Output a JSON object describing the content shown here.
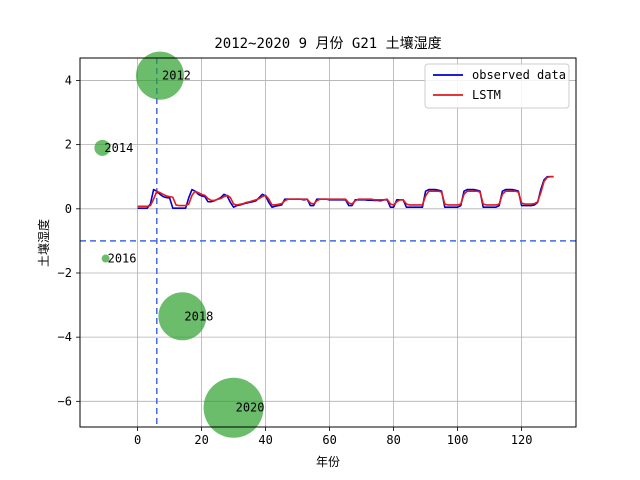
{
  "chart_data": {
    "type": "line",
    "title": "2012~2020 9 月份 G21 土壤湿度",
    "xlabel": "年份",
    "ylabel": "土壤湿度",
    "xlim": [
      -18,
      137
    ],
    "ylim": [
      -6.8,
      4.7
    ],
    "xticks": [
      0,
      20,
      40,
      60,
      80,
      100,
      120
    ],
    "yticks": [
      -6,
      -4,
      -2,
      0,
      2,
      4
    ],
    "grid": true,
    "legend_position": "top-right",
    "reference_lines": [
      {
        "orientation": "vertical",
        "value": 6,
        "color": "#4169e1",
        "style": "dashed"
      },
      {
        "orientation": "horizontal",
        "value": -1,
        "color": "#4169e1",
        "style": "dashed"
      }
    ],
    "bubbles": [
      {
        "label": "2012",
        "x": 7,
        "y": 4.15,
        "size": 24,
        "color": "#2ca02c"
      },
      {
        "label": "2014",
        "x": -11,
        "y": 1.9,
        "size": 8,
        "color": "#2ca02c"
      },
      {
        "label": "2016",
        "x": -10,
        "y": -1.55,
        "size": 4,
        "color": "#2ca02c"
      },
      {
        "label": "2018",
        "x": 14,
        "y": -3.35,
        "size": 24,
        "color": "#2ca02c"
      },
      {
        "label": "2020",
        "x": 30,
        "y": -6.2,
        "size": 30,
        "color": "#2ca02c"
      }
    ],
    "series": [
      {
        "name": "observed data",
        "color": "#0000cd",
        "x": [
          0,
          1,
          2,
          3,
          4,
          5,
          6,
          7,
          8,
          9,
          10,
          11,
          12,
          13,
          14,
          15,
          16,
          17,
          18,
          19,
          20,
          21,
          22,
          23,
          24,
          25,
          26,
          27,
          28,
          29,
          30,
          31,
          32,
          33,
          34,
          35,
          36,
          37,
          38,
          39,
          40,
          41,
          42,
          43,
          44,
          45,
          46,
          47,
          48,
          49,
          50,
          51,
          52,
          53,
          54,
          55,
          56,
          57,
          58,
          59,
          60,
          61,
          62,
          63,
          64,
          65,
          66,
          67,
          68,
          69,
          70,
          71,
          72,
          73,
          74,
          75,
          76,
          77,
          78,
          79,
          80,
          81,
          82,
          83,
          84,
          85,
          86,
          87,
          88,
          89,
          90,
          91,
          92,
          93,
          94,
          95,
          96,
          97,
          98,
          99,
          100,
          101,
          102,
          103,
          104,
          105,
          106,
          107,
          108,
          109,
          110,
          111,
          112,
          113,
          114,
          115,
          116,
          117,
          118,
          119,
          120,
          121,
          122,
          123,
          124,
          125,
          126,
          127,
          128,
          129,
          130
        ],
        "values": [
          0.02,
          0.02,
          0.02,
          0.02,
          0.15,
          0.6,
          0.55,
          0.45,
          0.38,
          0.35,
          0.34,
          0.02,
          0.02,
          0.02,
          0.02,
          0.02,
          0.35,
          0.6,
          0.55,
          0.45,
          0.4,
          0.38,
          0.22,
          0.22,
          0.25,
          0.3,
          0.35,
          0.45,
          0.4,
          0.2,
          0.05,
          0.1,
          0.12,
          0.15,
          0.18,
          0.2,
          0.22,
          0.25,
          0.35,
          0.45,
          0.4,
          0.2,
          0.05,
          0.08,
          0.1,
          0.12,
          0.3,
          0.3,
          0.3,
          0.3,
          0.3,
          0.3,
          0.28,
          0.3,
          0.1,
          0.1,
          0.3,
          0.3,
          0.3,
          0.3,
          0.28,
          0.28,
          0.28,
          0.28,
          0.28,
          0.28,
          0.1,
          0.1,
          0.28,
          0.28,
          0.28,
          0.28,
          0.27,
          0.27,
          0.26,
          0.26,
          0.25,
          0.28,
          0.28,
          0.05,
          0.05,
          0.28,
          0.28,
          0.28,
          0.05,
          0.05,
          0.05,
          0.05,
          0.05,
          0.05,
          0.55,
          0.6,
          0.6,
          0.6,
          0.58,
          0.55,
          0.05,
          0.05,
          0.05,
          0.05,
          0.05,
          0.1,
          0.55,
          0.6,
          0.6,
          0.6,
          0.58,
          0.55,
          0.05,
          0.05,
          0.05,
          0.05,
          0.05,
          0.1,
          0.55,
          0.6,
          0.6,
          0.6,
          0.58,
          0.55,
          0.1,
          0.1,
          0.1,
          0.1,
          0.12,
          0.2,
          0.6,
          0.9,
          1.0,
          1.0,
          1.0
        ]
      },
      {
        "name": "LSTM",
        "color": "#e31a1c",
        "x": [
          0,
          1,
          2,
          3,
          4,
          5,
          6,
          7,
          8,
          9,
          10,
          11,
          12,
          13,
          14,
          15,
          16,
          17,
          18,
          19,
          20,
          21,
          22,
          23,
          24,
          25,
          26,
          27,
          28,
          29,
          30,
          31,
          32,
          33,
          34,
          35,
          36,
          37,
          38,
          39,
          40,
          41,
          42,
          43,
          44,
          45,
          46,
          47,
          48,
          49,
          50,
          51,
          52,
          53,
          54,
          55,
          56,
          57,
          58,
          59,
          60,
          61,
          62,
          63,
          64,
          65,
          66,
          67,
          68,
          69,
          70,
          71,
          72,
          73,
          74,
          75,
          76,
          77,
          78,
          79,
          80,
          81,
          82,
          83,
          84,
          85,
          86,
          87,
          88,
          89,
          90,
          91,
          92,
          93,
          94,
          95,
          96,
          97,
          98,
          99,
          100,
          101,
          102,
          103,
          104,
          105,
          106,
          107,
          108,
          109,
          110,
          111,
          112,
          113,
          114,
          115,
          116,
          117,
          118,
          119,
          120,
          121,
          122,
          123,
          124,
          125,
          126,
          127,
          128,
          129,
          130
        ],
        "values": [
          0.08,
          0.08,
          0.08,
          0.08,
          0.1,
          0.3,
          0.55,
          0.5,
          0.45,
          0.4,
          0.38,
          0.36,
          0.12,
          0.1,
          0.1,
          0.1,
          0.15,
          0.42,
          0.55,
          0.5,
          0.45,
          0.42,
          0.32,
          0.26,
          0.26,
          0.3,
          0.32,
          0.38,
          0.42,
          0.35,
          0.15,
          0.12,
          0.14,
          0.16,
          0.2,
          0.22,
          0.25,
          0.28,
          0.32,
          0.38,
          0.42,
          0.3,
          0.12,
          0.12,
          0.14,
          0.16,
          0.25,
          0.3,
          0.3,
          0.3,
          0.3,
          0.3,
          0.3,
          0.3,
          0.18,
          0.15,
          0.25,
          0.3,
          0.3,
          0.3,
          0.3,
          0.3,
          0.3,
          0.3,
          0.3,
          0.3,
          0.18,
          0.15,
          0.25,
          0.3,
          0.3,
          0.3,
          0.3,
          0.3,
          0.28,
          0.28,
          0.28,
          0.28,
          0.3,
          0.15,
          0.12,
          0.22,
          0.28,
          0.28,
          0.15,
          0.12,
          0.12,
          0.12,
          0.12,
          0.12,
          0.4,
          0.55,
          0.55,
          0.55,
          0.55,
          0.52,
          0.15,
          0.12,
          0.12,
          0.12,
          0.12,
          0.15,
          0.45,
          0.55,
          0.55,
          0.55,
          0.55,
          0.52,
          0.15,
          0.12,
          0.12,
          0.12,
          0.12,
          0.15,
          0.45,
          0.55,
          0.55,
          0.55,
          0.55,
          0.52,
          0.18,
          0.15,
          0.15,
          0.15,
          0.16,
          0.22,
          0.5,
          0.85,
          0.98,
          1.0,
          1.0
        ]
      }
    ]
  }
}
